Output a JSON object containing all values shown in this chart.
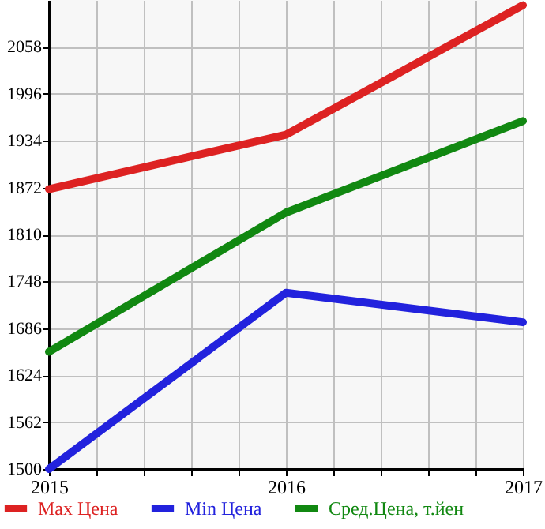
{
  "chart_data": {
    "type": "line",
    "x": [
      2015,
      2016,
      2017
    ],
    "series": [
      {
        "name": "Max Цена",
        "color": "#dd2222",
        "values": [
          1870,
          1942,
          2113
        ]
      },
      {
        "name": "Min Цена",
        "color": "#2222dd",
        "values": [
          1500,
          1733,
          1694
        ]
      },
      {
        "name": "Сред.Цена, т.йен",
        "color": "#118811",
        "values": [
          1655,
          1839,
          1960
        ]
      }
    ],
    "xlim": [
      2015,
      2017
    ],
    "xticks": [
      2015,
      {
        "value": 2015.2,
        "label": null
      },
      {
        "value": 2015.4,
        "label": null
      },
      {
        "value": 2015.6,
        "label": null
      },
      {
        "value": 2015.8,
        "label": null
      },
      2016,
      {
        "value": 2016.2,
        "label": null
      },
      {
        "value": 2016.4,
        "label": null
      },
      {
        "value": 2016.6,
        "label": null
      },
      {
        "value": 2016.8,
        "label": null
      },
      2017
    ],
    "ylim": [
      1500,
      2120
    ],
    "yticks": [
      1500,
      1562,
      1624,
      1686,
      1748,
      1810,
      1872,
      1934,
      1996,
      2058
    ],
    "grid": true,
    "legend": "bottom",
    "marker": "none",
    "line_style": "solid"
  }
}
